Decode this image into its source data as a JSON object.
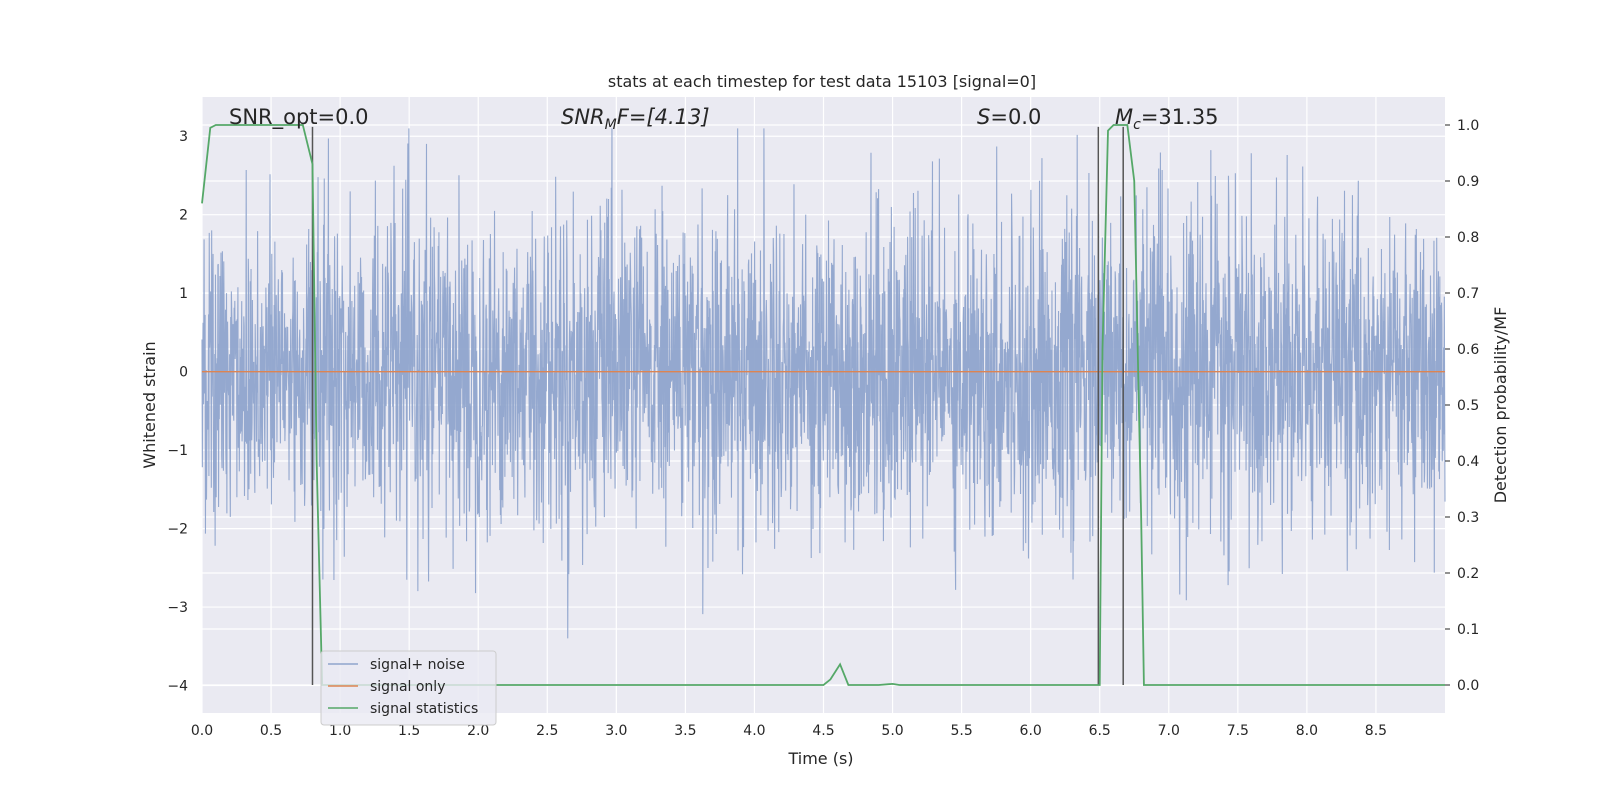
{
  "chart_data": {
    "type": "line",
    "title": "stats at each timestep for test data 15103 [signal=0]",
    "xlabel": "Time (s)",
    "ylabel": "Whitened strain",
    "ylabel_right": "Detection probability/MF",
    "xlim": [
      0.0,
      9.0
    ],
    "ylim": [
      -4.35,
      3.5
    ],
    "ylim_right": [
      -0.05,
      1.05
    ],
    "xticks": [
      "0.0",
      "0.5",
      "1.0",
      "1.5",
      "2.0",
      "2.5",
      "3.0",
      "3.5",
      "4.0",
      "4.5",
      "5.0",
      "5.5",
      "6.0",
      "6.5",
      "7.0",
      "7.5",
      "8.0",
      "8.5"
    ],
    "yticks_left": [
      "3",
      "2",
      "1",
      "0",
      "−1",
      "−2",
      "−3",
      "−4"
    ],
    "yticks_right": [
      "1.0",
      "0.9",
      "0.8",
      "0.7",
      "0.6",
      "0.5",
      "0.4",
      "0.3",
      "0.2",
      "0.1",
      "0.0"
    ],
    "grid": true,
    "legend_position": "lower-left",
    "annotations": {
      "snr_opt": "SNR_opt=0.0",
      "snr_mf_main": "SNR",
      "snr_mf_sub": "M",
      "snr_mf_rest": "F=[4.13]",
      "s_main": "S",
      "s_rest": "=0.0",
      "mc_main": "M",
      "mc_sub": "c",
      "mc_rest": "=31.35"
    },
    "series": [
      {
        "name": "signal+ noise",
        "color": "#8fa4cc",
        "axis": "left",
        "kind": "whitened noise, approx. Gaussian, std ~1, range about -3.6 to 3.1",
        "approx_min": -3.6,
        "approx_max": 3.1
      },
      {
        "name": "signal only",
        "color": "#dd8452",
        "axis": "left",
        "x": [
          0.0,
          9.0
        ],
        "y": [
          0.0,
          0.0
        ]
      },
      {
        "name": "signal statistics",
        "color": "#55a868",
        "axis": "right",
        "x": [
          0.0,
          0.06,
          0.1,
          0.2,
          0.3,
          0.5,
          0.6,
          0.7,
          0.73,
          0.8,
          0.83,
          0.87,
          0.9,
          1.0,
          2.0,
          3.0,
          4.0,
          4.4,
          4.5,
          4.55,
          4.62,
          4.68,
          4.75,
          4.85,
          4.9,
          5.0,
          5.05,
          5.5,
          6.0,
          6.4,
          6.5,
          6.52,
          6.56,
          6.6,
          6.7,
          6.75,
          6.8,
          6.82,
          6.9,
          7.0,
          8.0,
          9.0
        ],
        "y": [
          0.86,
          0.995,
          1.0,
          1.0,
          1.0,
          1.0,
          1.0,
          1.0,
          1.0,
          0.93,
          0.4,
          0.0,
          0.0,
          0.0,
          0.0,
          0.0,
          0.0,
          0.0,
          0.0,
          0.01,
          0.037,
          0.0,
          0.0,
          0.0,
          0.0,
          0.002,
          0.0,
          0.0,
          0.0,
          0.0,
          0.0,
          0.6,
          0.99,
          1.0,
          1.0,
          0.9,
          0.3,
          0.0,
          0.0,
          0.0,
          0.0,
          0.0
        ]
      }
    ],
    "vertical_lines_x": [
      0.8,
      6.49,
      6.67
    ],
    "vertical_lines_color": "#555555"
  }
}
